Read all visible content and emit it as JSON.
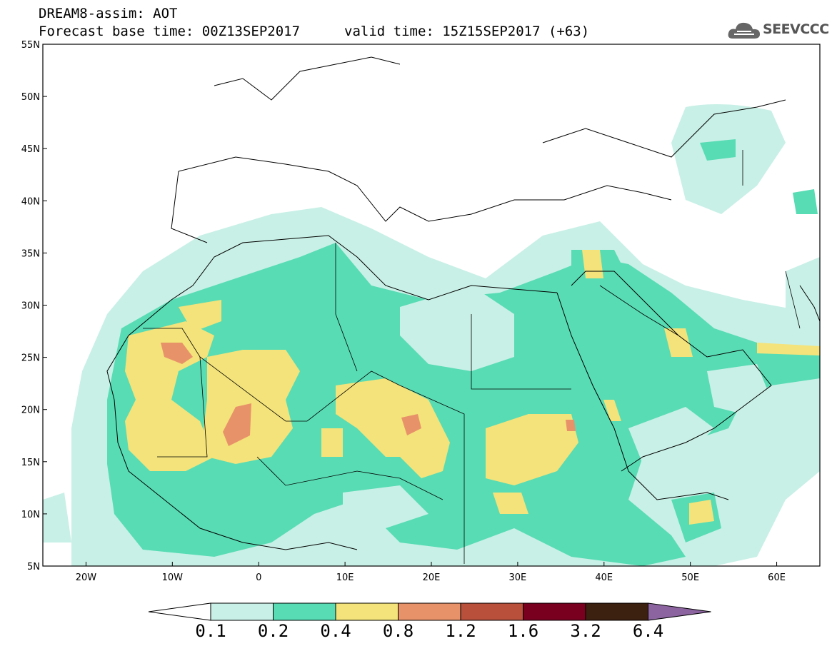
{
  "header": {
    "line1": "DREAM8-assim: AOT",
    "line2": "Forecast base time: 00Z13SEP2017",
    "line3": "valid time: 15Z15SEP2017 (+63)",
    "logo_text": "SEEVCCC",
    "logo_icon": "cloud-icon"
  },
  "map": {
    "projection": "lat-lon",
    "lon_range": [
      -25,
      65
    ],
    "lat_range": [
      5,
      55
    ],
    "lat_ticks": [
      "5N",
      "10N",
      "15N",
      "20N",
      "25N",
      "30N",
      "35N",
      "40N",
      "45N",
      "50N",
      "55N"
    ],
    "lon_ticks": [
      "20W",
      "10W",
      "0",
      "10E",
      "20E",
      "30E",
      "40E",
      "50E",
      "60E"
    ],
    "variable": "Aerosol Optical Thickness (AOT)"
  },
  "colorbar": {
    "labels": [
      "0.1",
      "0.2",
      "0.4",
      "0.8",
      "1.2",
      "1.6",
      "3.2",
      "6.4"
    ],
    "colors": [
      "#ffffff",
      "#c8f0e6",
      "#58dcb4",
      "#f4e37a",
      "#e8926a",
      "#b8503c",
      "#7a0020",
      "#3c2010",
      "#8c64a0"
    ]
  }
}
